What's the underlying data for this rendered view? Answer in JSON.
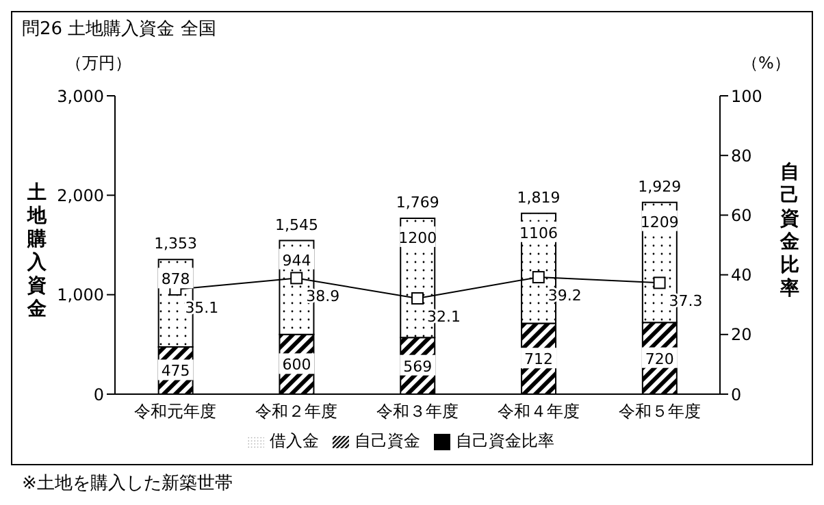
{
  "chart_data": {
    "type": "bar",
    "title": "問26 土地購入資金 全国",
    "ylabel": "土地購入資金",
    "y2label": "自己資金比率",
    "categories": [
      "令和元年度",
      "令和２年度",
      "令和３年度",
      "令和４年度",
      "令和５年度"
    ],
    "stacked": true,
    "series": [
      {
        "name": "自己資金",
        "color": "#000000",
        "values": [
          475,
          600,
          569,
          712,
          720
        ]
      },
      {
        "name": "借入金",
        "color": "#000000",
        "values": [
          878,
          944,
          1200,
          1106,
          1209
        ]
      },
      {
        "name": "自己資金比率",
        "type": "line",
        "axis": "y2",
        "color": "#000000",
        "values": [
          35.1,
          38.9,
          32.1,
          39.2,
          37.3
        ]
      }
    ],
    "totals": [
      "1,353",
      "1,545",
      "1,769",
      "1,819",
      "1,929"
    ],
    "ylim": [
      0,
      3000
    ],
    "yticks": [
      0,
      {
        "value": 1000,
        "label": "1,000"
      },
      {
        "value": 2000,
        "label": "2,000"
      },
      {
        "value": 3000,
        "label": "3,000"
      }
    ],
    "y2lim": [
      0,
      100
    ],
    "y2ticks": [
      0,
      20,
      40,
      60,
      80,
      100
    ],
    "data_labels": true,
    "marker": "square",
    "legend": "bottom",
    "grid": false,
    "annotations": [
      "（万円）",
      "（%）",
      "※土地を購入した新築世帯"
    ]
  }
}
